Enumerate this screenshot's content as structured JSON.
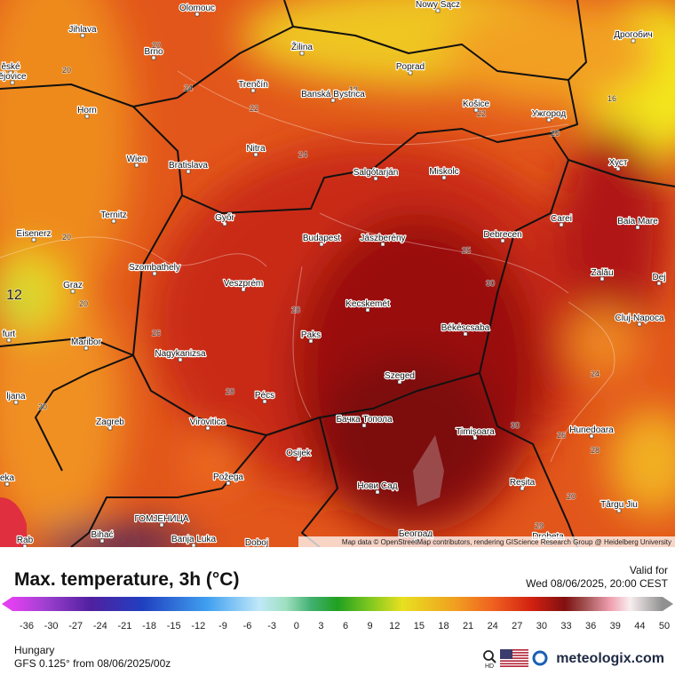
{
  "map": {
    "cities": [
      {
        "label": "Olomouc"
      },
      {
        "label": "Nowy Sącz"
      },
      {
        "label": "Jihlava"
      },
      {
        "label": "Žilina"
      },
      {
        "label": "Дрогобич"
      },
      {
        "label": "ěské"
      },
      {
        "label": "ějovice"
      },
      {
        "label": "Brno"
      },
      {
        "label": "Poprad"
      },
      {
        "label": "Banská Bystrica"
      },
      {
        "label": "Trenčín"
      },
      {
        "label": "Košice"
      },
      {
        "label": "Ужгород"
      },
      {
        "label": "Horn"
      },
      {
        "label": "Nitra"
      },
      {
        "label": "Salgótarján"
      },
      {
        "label": "Miskolc"
      },
      {
        "label": "Wien"
      },
      {
        "label": "Bratislava"
      },
      {
        "label": "Хуст"
      },
      {
        "label": "Ternitz"
      },
      {
        "label": "Győr"
      },
      {
        "label": "Carei"
      },
      {
        "label": "Baia Mare"
      },
      {
        "label": "Eisenerz"
      },
      {
        "label": "Budapest"
      },
      {
        "label": "Jászberény"
      },
      {
        "label": "Debrecen"
      },
      {
        "label": "Szombathely"
      },
      {
        "label": "Zalău"
      },
      {
        "label": "Dej"
      },
      {
        "label": "Graz"
      },
      {
        "label": "Veszprém"
      },
      {
        "label": "Kecskemét"
      },
      {
        "label": "Cluj-Napoca"
      },
      {
        "label": "furt"
      },
      {
        "label": "Paks"
      },
      {
        "label": "Békéscsaba"
      },
      {
        "label": "Maribor"
      },
      {
        "label": "Nagykanizsa"
      },
      {
        "label": "ljana"
      },
      {
        "label": "Szeged"
      },
      {
        "label": "Pécs"
      },
      {
        "label": "Бачка Топола"
      },
      {
        "label": "Timișoara"
      },
      {
        "label": "Zagreb"
      },
      {
        "label": "Virovitica"
      },
      {
        "label": "Hunedoara"
      },
      {
        "label": "Osijek"
      },
      {
        "label": "eka"
      },
      {
        "label": "Požega"
      },
      {
        "label": "Нови Сад"
      },
      {
        "label": "Reșita"
      },
      {
        "label": "Târgu Jiu"
      },
      {
        "label": "ГОМЈЕНИЦА"
      },
      {
        "label": "Bihać"
      },
      {
        "label": "Banja Luka"
      },
      {
        "label": "Doboj"
      },
      {
        "label": "Београд"
      },
      {
        "label": "Drobeta"
      },
      {
        "label": "Rab"
      }
    ],
    "contour_labels": [
      20,
      20,
      24,
      22,
      18,
      22,
      16,
      26,
      24,
      20,
      25,
      30,
      20,
      12,
      26,
      28,
      28,
      20,
      24,
      26,
      30,
      28,
      20,
      29
    ],
    "attribution": "Map data © OpenStreetMap contributors, rendering GIScience Research Group @ Heidelberg University"
  },
  "legend": {
    "title": "Max. temperature, 3h (°C)",
    "ticks": [
      -36,
      -30,
      -27,
      -24,
      -21,
      -18,
      -15,
      -12,
      -9,
      -6,
      -3,
      0,
      3,
      6,
      9,
      12,
      15,
      18,
      21,
      24,
      27,
      30,
      33,
      36,
      39,
      44,
      50
    ]
  },
  "valid": {
    "label": "Valid for",
    "time": "Wed 08/06/2025, 20:00 CEST"
  },
  "footer": {
    "region": "Hungary",
    "model": "GFS 0.125° from  08/06/2025/00z",
    "hd": "HD",
    "brand": "meteologix.com"
  }
}
